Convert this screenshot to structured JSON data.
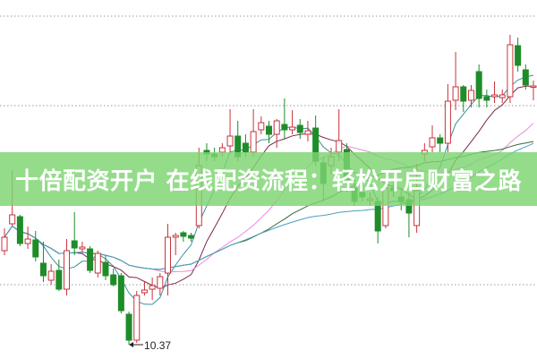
{
  "banner": {
    "title": "十倍配资开户 在线配资流程：轻松开启财富之路"
  },
  "colors": {
    "up": "#c8323c",
    "down": "#1e8c28",
    "grid": "#9a9a9a",
    "banner": "#7dd470"
  },
  "chart_data": {
    "type": "candlestick",
    "title": "",
    "xlabel": "",
    "ylabel": "",
    "ylim": [
      10.05,
      18.07
    ],
    "grid": "horizontal dotted",
    "gridlines": [
      17.71,
      15.71,
      11.71
    ],
    "annotation": {
      "label": "10.37",
      "candle_index": 16,
      "value": 10.37
    },
    "candles_ohlc": [
      [
        12.47,
        12.97,
        12.37,
        12.77
      ],
      [
        13.07,
        14.27,
        13.03,
        13.27
      ],
      [
        13.23,
        13.27,
        12.57,
        12.63
      ],
      [
        12.63,
        13.01,
        12.51,
        12.73
      ],
      [
        12.71,
        12.91,
        12.23,
        12.33
      ],
      [
        12.19,
        12.67,
        11.77,
        11.91
      ],
      [
        11.81,
        12.17,
        11.71,
        12.01
      ],
      [
        12.03,
        12.27,
        11.57,
        11.61
      ],
      [
        11.61,
        12.73,
        11.47,
        12.47
      ],
      [
        12.69,
        13.33,
        12.37,
        12.53
      ],
      [
        12.51,
        12.67,
        12.43,
        12.55
      ],
      [
        12.51,
        12.57,
        11.97,
        12.03
      ],
      [
        11.97,
        12.47,
        11.87,
        12.41
      ],
      [
        12.21,
        12.37,
        11.81,
        11.91
      ],
      [
        11.93,
        12.07,
        11.67,
        11.71
      ],
      [
        11.91,
        11.97,
        11.07,
        11.13
      ],
      [
        11.05,
        11.11,
        10.37,
        10.47
      ],
      [
        10.47,
        11.57,
        10.41,
        11.47
      ],
      [
        11.53,
        11.77,
        11.47,
        11.59
      ],
      [
        11.61,
        11.87,
        11.37,
        11.69
      ],
      [
        11.63,
        11.97,
        11.47,
        11.89
      ],
      [
        11.97,
        13.07,
        11.47,
        12.77
      ],
      [
        12.77,
        12.87,
        12.37,
        12.81
      ],
      [
        12.87,
        12.91,
        12.67,
        12.79
      ],
      [
        12.81,
        12.87,
        12.67,
        12.75
      ],
      [
        13.03,
        14.77,
        12.97,
        14.37
      ],
      [
        14.71,
        14.87,
        14.47,
        14.63
      ],
      [
        14.63,
        14.77,
        14.47,
        14.57
      ],
      [
        14.67,
        14.87,
        14.57,
        14.77
      ],
      [
        14.81,
        15.63,
        14.67,
        15.03
      ],
      [
        15.03,
        15.37,
        14.47,
        14.57
      ],
      [
        14.87,
        15.07,
        14.57,
        14.67
      ],
      [
        14.67,
        15.63,
        14.57,
        15.13
      ],
      [
        15.17,
        15.47,
        15.07,
        15.33
      ],
      [
        15.25,
        15.37,
        14.87,
        15.07
      ],
      [
        15.07,
        15.41,
        14.77,
        15.37
      ],
      [
        15.29,
        15.87,
        14.97,
        15.17
      ],
      [
        15.17,
        15.61,
        15.07,
        15.23
      ],
      [
        15.27,
        15.41,
        14.97,
        15.11
      ],
      [
        15.07,
        15.37,
        14.91,
        15.15
      ],
      [
        15.21,
        15.49,
        14.37,
        14.47
      ],
      [
        14.43,
        14.57,
        13.57,
        13.97
      ],
      [
        14.37,
        14.77,
        14.17,
        14.57
      ],
      [
        14.67,
        15.63,
        14.47,
        14.93
      ],
      [
        14.73,
        14.87,
        13.77,
        14.03
      ],
      [
        13.87,
        14.07,
        13.47,
        13.57
      ],
      [
        13.77,
        13.97,
        13.57,
        13.67
      ],
      [
        13.59,
        13.77,
        13.47,
        13.63
      ],
      [
        13.57,
        13.67,
        12.63,
        12.91
      ],
      [
        13.03,
        14.07,
        12.97,
        13.87
      ],
      [
        13.87,
        14.07,
        13.67,
        13.81
      ],
      [
        13.67,
        13.87,
        13.37,
        13.57
      ],
      [
        13.61,
        13.77,
        12.77,
        13.31
      ],
      [
        13.03,
        14.41,
        12.87,
        13.81
      ],
      [
        14.63,
        14.87,
        14.47,
        14.71
      ],
      [
        14.79,
        15.27,
        14.67,
        14.99
      ],
      [
        14.99,
        15.07,
        14.67,
        14.87
      ],
      [
        14.87,
        16.19,
        14.67,
        15.81
      ],
      [
        15.83,
        16.91,
        15.61,
        16.13
      ],
      [
        16.13,
        16.17,
        15.57,
        15.81
      ],
      [
        15.83,
        16.17,
        15.67,
        16.05
      ],
      [
        16.47,
        16.63,
        15.67,
        15.87
      ],
      [
        15.91,
        16.07,
        15.67,
        15.83
      ],
      [
        15.91,
        16.25,
        15.77,
        15.95
      ],
      [
        15.89,
        16.07,
        15.77,
        15.95
      ],
      [
        15.91,
        17.29,
        15.77,
        17.07
      ],
      [
        17.05,
        17.23,
        16.47,
        16.61
      ],
      [
        16.51,
        16.63,
        16.07,
        16.17
      ],
      [
        16.13,
        16.27,
        15.83,
        16.15
      ]
    ],
    "moving_averages": [
      {
        "period": 5,
        "color": "#3a8fa0"
      },
      {
        "period": 10,
        "color": "#7a2a4a"
      },
      {
        "period": 20,
        "color": "#e58ae0"
      },
      {
        "period": 30,
        "color": "#2f6b3a"
      },
      {
        "period": 45,
        "color": "#4aa0c0"
      }
    ]
  }
}
